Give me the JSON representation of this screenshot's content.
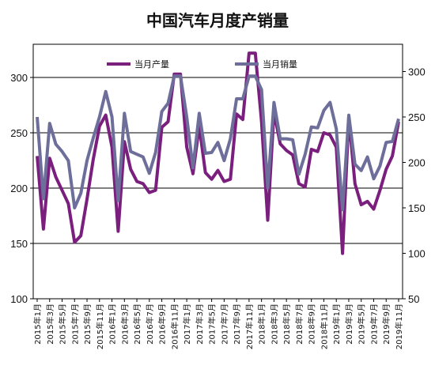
{
  "chart_data": {
    "type": "line",
    "title": "中国汽车月度产销量",
    "x": [
      "2015年1月",
      "2015年2月",
      "2015年3月",
      "2015年4月",
      "2015年5月",
      "2015年6月",
      "2015年7月",
      "2015年8月",
      "2015年9月",
      "2015年10月",
      "2015年11月",
      "2015年12月",
      "2016年1月",
      "2016年2月",
      "2016年3月",
      "2016年4月",
      "2016年5月",
      "2016年6月",
      "2016年7月",
      "2016年8月",
      "2016年9月",
      "2016年10月",
      "2016年11月",
      "2016年12月",
      "2017年1月",
      "2017年2月",
      "2017年3月",
      "2017年4月",
      "2017年5月",
      "2017年6月",
      "2017年7月",
      "2017年8月",
      "2017年9月",
      "2017年10月",
      "2017年11月",
      "2017年12月",
      "2018年1月",
      "2018年2月",
      "2018年3月",
      "2018年4月",
      "2018年5月",
      "2018年6月",
      "2018年7月",
      "2018年8月",
      "2018年9月",
      "2018年10月",
      "2018年11月",
      "2018年12月",
      "2019年1月",
      "2019年2月",
      "2019年3月",
      "2019年4月",
      "2019年5月",
      "2019年6月",
      "2019年7月",
      "2019年8月",
      "2019年9月",
      "2019年10月",
      "2019年11月"
    ],
    "x_tick_labels": [
      "2015年1月",
      "2015年3月",
      "2015年5月",
      "2015年7月",
      "2015年9月",
      "2015年11月",
      "2016年1月",
      "2016年3月",
      "2016年5月",
      "2016年7月",
      "2016年9月",
      "2016年11月",
      "2017年1月",
      "2017年3月",
      "2017年5月",
      "2017年7月",
      "2017年9月",
      "2017年11月",
      "2018年1月",
      "2018年3月",
      "2018年5月",
      "2018年7月",
      "2018年9月",
      "2018年11月",
      "2019年1月",
      "2019年3月",
      "2019年5月",
      "2019年7月",
      "2019年9月",
      "2019年11月"
    ],
    "series": [
      {
        "name": "当月产量",
        "axis": "left",
        "color": "#7b1f7e",
        "values": [
          229,
          163,
          227,
          210,
          198,
          186,
          151,
          157,
          190,
          226,
          256,
          266,
          237,
          161,
          242,
          217,
          206,
          204,
          196,
          198,
          255,
          260,
          303,
          303,
          237,
          213,
          256,
          214,
          208,
          216,
          206,
          208,
          267,
          262,
          322,
          322,
          260,
          171,
          269,
          240,
          234,
          230,
          204,
          201,
          235,
          233,
          250,
          248,
          237,
          141,
          264,
          204,
          185,
          188,
          181,
          198,
          217,
          229,
          260
        ]
      },
      {
        "name": "当月销量",
        "axis": "right",
        "color": "#6e6e9b",
        "values": [
          250,
          160,
          243,
          220,
          212,
          202,
          150,
          166,
          202,
          227,
          250,
          278,
          250,
          158,
          254,
          212,
          209,
          206,
          188,
          211,
          256,
          265,
          295,
          295,
          250,
          194,
          254,
          210,
          211,
          222,
          202,
          226,
          270,
          270,
          295,
          295,
          280,
          172,
          266,
          226,
          226,
          225,
          187,
          209,
          239,
          238,
          257,
          266,
          237,
          148,
          252,
          198,
          191,
          206,
          182,
          196,
          222,
          223,
          248
        ]
      }
    ],
    "ylim_left": [
      100,
      330
    ],
    "ylim_right": [
      50,
      330
    ],
    "yticks_left": [
      100,
      150,
      200,
      250,
      300
    ],
    "yticks_right": [
      50,
      100,
      150,
      200,
      250,
      300
    ],
    "grid": "horizontal",
    "legend_position": "top"
  }
}
